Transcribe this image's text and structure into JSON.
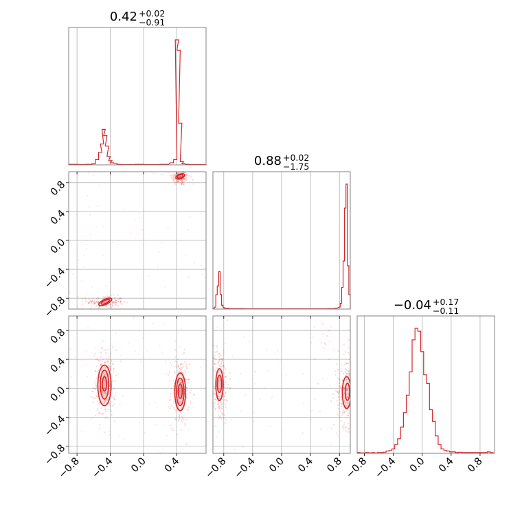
{
  "chart_data": {
    "type": "corner",
    "color": "#d62728",
    "parameters": [
      {
        "median": "0.42",
        "upper": "+0.02",
        "lower": "−0.91",
        "range": [
          -0.9,
          0.75
        ]
      },
      {
        "median": "0.88",
        "upper": "+0.02",
        "lower": "−1.75",
        "range": [
          -0.95,
          0.95
        ]
      },
      {
        "median": "−0.04",
        "upper": "+0.17",
        "lower": "−0.11",
        "range": [
          -0.9,
          1.0
        ]
      }
    ],
    "ticks": {
      "p0": {
        "values": [
          -0.8,
          -0.4,
          0.0,
          0.4
        ],
        "labels": [
          "−0.8",
          "−0.4",
          "0.0",
          "0.4"
        ]
      },
      "p1": {
        "values": [
          -0.8,
          -0.4,
          0.0,
          0.4,
          0.8
        ],
        "labels": [
          "−0.8",
          "−0.4",
          "0.0",
          "0.4",
          "0.8"
        ]
      },
      "p2": {
        "values": [
          -0.8,
          -0.4,
          0.0,
          0.4,
          0.8
        ],
        "labels": [
          "−0.8",
          "−0.4",
          "0.0",
          "0.4",
          "0.8"
        ]
      }
    },
    "grid": true,
    "hist_p0": {
      "x": [
        -0.88,
        -0.84,
        -0.8,
        -0.76,
        -0.72,
        -0.68,
        -0.64,
        -0.6,
        -0.56,
        -0.52,
        -0.5,
        -0.48,
        -0.46,
        -0.44,
        -0.42,
        -0.4,
        -0.38,
        -0.34,
        -0.3,
        -0.26,
        -0.2,
        -0.14,
        -0.08,
        -0.02,
        0.04,
        0.1,
        0.16,
        0.22,
        0.28,
        0.34,
        0.38,
        0.4,
        0.42,
        0.44,
        0.46,
        0.48,
        0.52,
        0.58,
        0.64,
        0.7,
        0.74
      ],
      "values": [
        0.5,
        0.5,
        0.5,
        0.3,
        0.3,
        0.5,
        0.5,
        1,
        5,
        12,
        20,
        34,
        28,
        18,
        8,
        4,
        2,
        1.5,
        0.5,
        0.3,
        0.3,
        0.3,
        0.5,
        0.5,
        0.3,
        0.3,
        0.3,
        0.5,
        0.5,
        2,
        5,
        120,
        110,
        40,
        3,
        1,
        0.5,
        0.3,
        0.3,
        0.3,
        0.3
      ]
    },
    "hist_p1": {
      "x": [
        -0.94,
        -0.92,
        -0.9,
        -0.88,
        -0.86,
        -0.84,
        -0.82,
        -0.8,
        -0.78,
        -0.74,
        -0.7,
        -0.66,
        -0.6,
        -0.54,
        -0.48,
        -0.42,
        -0.36,
        -0.3,
        -0.24,
        -0.18,
        -0.12,
        -0.06,
        0.0,
        0.06,
        0.12,
        0.18,
        0.24,
        0.3,
        0.36,
        0.42,
        0.48,
        0.54,
        0.6,
        0.66,
        0.72,
        0.76,
        0.8,
        0.82,
        0.84,
        0.86,
        0.88,
        0.9,
        0.92,
        0.94
      ],
      "values": [
        2,
        4,
        30,
        48,
        78,
        30,
        8,
        3,
        2,
        1.5,
        1,
        1,
        0.8,
        0.8,
        0.5,
        0.5,
        0.5,
        0.5,
        0.5,
        0.5,
        0.5,
        0.5,
        0.5,
        0.5,
        0.5,
        0.5,
        0.5,
        0.5,
        0.5,
        0.5,
        0.5,
        0.5,
        0.5,
        1,
        1,
        2,
        4,
        12,
        45,
        100,
        210,
        260,
        90,
        30
      ]
    },
    "hist_p2": {
      "x": [
        -0.88,
        -0.84,
        -0.8,
        -0.76,
        -0.72,
        -0.68,
        -0.64,
        -0.6,
        -0.56,
        -0.52,
        -0.48,
        -0.44,
        -0.4,
        -0.36,
        -0.32,
        -0.28,
        -0.24,
        -0.2,
        -0.16,
        -0.12,
        -0.08,
        -0.04,
        0.0,
        0.04,
        0.08,
        0.12,
        0.16,
        0.2,
        0.24,
        0.28,
        0.32,
        0.36,
        0.4,
        0.44,
        0.48,
        0.52,
        0.56,
        0.6,
        0.64,
        0.68,
        0.72,
        0.76,
        0.8,
        0.84,
        0.88,
        0.92,
        0.96
      ],
      "values": [
        0.5,
        0.3,
        0.3,
        0.5,
        0.3,
        0.5,
        0.3,
        0.5,
        0.5,
        0.8,
        1.5,
        2,
        3,
        6,
        10,
        18,
        28,
        40,
        56,
        78,
        86,
        84,
        70,
        54,
        48,
        30,
        22,
        12,
        6,
        3,
        2,
        1.5,
        1,
        1,
        0.5,
        0.8,
        0.5,
        0.5,
        0.5,
        0.5,
        0.5,
        0.5,
        0.5,
        0.5,
        0.5,
        1,
        0.5
      ]
    },
    "scatter_p0_p1": {
      "clusters": [
        {
          "x": 0.44,
          "y": 0.88,
          "sx": 0.025,
          "sy": 0.03,
          "n": 160
        },
        {
          "x": -0.46,
          "y": -0.85,
          "sx": 0.05,
          "sy": 0.02,
          "n": 160
        }
      ],
      "contours": [
        {
          "x": 0.44,
          "y": 0.885,
          "rx": 0.035,
          "ry": 0.022,
          "rot": -20
        },
        {
          "x": 0.44,
          "y": 0.885,
          "rx": 0.055,
          "ry": 0.032,
          "rot": -20
        },
        {
          "x": -0.46,
          "y": -0.85,
          "rx": 0.055,
          "ry": 0.022,
          "rot": -25
        },
        {
          "x": -0.46,
          "y": -0.85,
          "rx": 0.085,
          "ry": 0.035,
          "rot": -25
        }
      ]
    },
    "scatter_p0_p2": {
      "clusters": [
        {
          "x": -0.47,
          "y": 0.05,
          "sx": 0.03,
          "sy": 0.12,
          "n": 240
        },
        {
          "x": 0.44,
          "y": -0.05,
          "sx": 0.025,
          "sy": 0.12,
          "n": 240
        }
      ],
      "contours": [
        {
          "x": -0.47,
          "y": 0.06,
          "rx": 0.025,
          "ry": 0.1,
          "rot": 0
        },
        {
          "x": -0.47,
          "y": 0.05,
          "rx": 0.05,
          "ry": 0.2,
          "rot": 0
        },
        {
          "x": -0.47,
          "y": 0.04,
          "rx": 0.08,
          "ry": 0.28,
          "rot": 0
        },
        {
          "x": 0.44,
          "y": -0.04,
          "rx": 0.025,
          "ry": 0.1,
          "rot": 0
        },
        {
          "x": 0.44,
          "y": -0.05,
          "rx": 0.045,
          "ry": 0.19,
          "rot": 0
        },
        {
          "x": 0.44,
          "y": -0.05,
          "rx": 0.065,
          "ry": 0.26,
          "rot": 0
        }
      ]
    },
    "scatter_p1_p2": {
      "clusters": [
        {
          "x": -0.86,
          "y": 0.05,
          "sx": 0.03,
          "sy": 0.13,
          "n": 220
        },
        {
          "x": 0.9,
          "y": -0.05,
          "sx": 0.03,
          "sy": 0.12,
          "n": 220
        },
        {
          "x": 0.75,
          "y": 0.6,
          "sx": 0.12,
          "sy": 0.25,
          "n": 40
        }
      ],
      "contours": [
        {
          "x": -0.86,
          "y": 0.06,
          "rx": 0.03,
          "ry": 0.12,
          "rot": 0
        },
        {
          "x": -0.86,
          "y": 0.05,
          "rx": 0.05,
          "ry": 0.22,
          "rot": 0
        },
        {
          "x": 0.91,
          "y": -0.05,
          "rx": 0.03,
          "ry": 0.12,
          "rot": 0
        },
        {
          "x": 0.9,
          "y": -0.06,
          "rx": 0.06,
          "ry": 0.22,
          "rot": 0
        }
      ]
    }
  }
}
